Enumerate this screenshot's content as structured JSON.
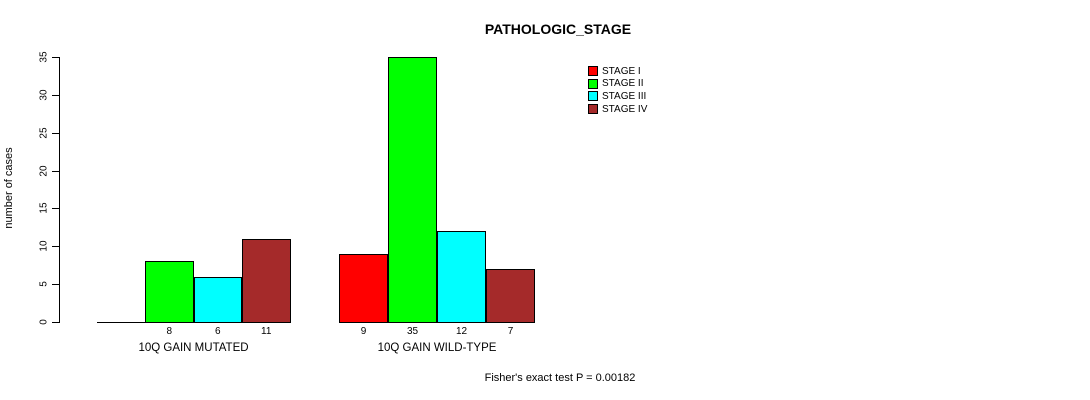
{
  "chart_data": {
    "type": "bar",
    "title": "PATHOLOGIC_STAGE",
    "ylabel": "number of cases",
    "xlabel": "",
    "categories": [
      "10Q GAIN MUTATED",
      "10Q GAIN WILD-TYPE"
    ],
    "series": [
      {
        "name": "STAGE I",
        "color": "#FF0000",
        "values": [
          0,
          9
        ]
      },
      {
        "name": "STAGE II",
        "color": "#00FF00",
        "values": [
          8,
          35
        ]
      },
      {
        "name": "STAGE III",
        "color": "#00FFFF",
        "values": [
          6,
          12
        ]
      },
      {
        "name": "STAGE IV",
        "color": "#A52A2A",
        "values": [
          11,
          7
        ]
      }
    ],
    "bar_value_labels": [
      [
        "",
        "8",
        "6",
        "11"
      ],
      [
        "9",
        "35",
        "12",
        "7"
      ]
    ],
    "ylim": [
      0,
      35
    ],
    "yticks": [
      0,
      5,
      10,
      15,
      20,
      25,
      30,
      35
    ],
    "grid": false,
    "legend_position": "top-right",
    "bar_border_color": "#000000",
    "annotation": "Fisher's exact test P = 0.00182"
  }
}
